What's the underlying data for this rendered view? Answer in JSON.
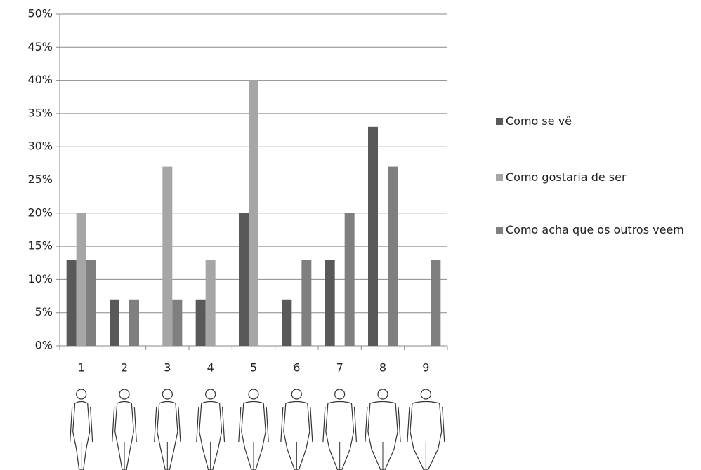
{
  "chart_data": {
    "type": "bar",
    "categories": [
      "1",
      "2",
      "3",
      "4",
      "5",
      "6",
      "7",
      "8",
      "9"
    ],
    "series": [
      {
        "name": "Como se vê",
        "color": "#595959",
        "values": [
          13,
          7,
          0,
          7,
          20,
          7,
          13,
          33,
          0
        ]
      },
      {
        "name": "Como gostaria de ser",
        "color": "#a6a6a6",
        "values": [
          20,
          0,
          27,
          13,
          40,
          0,
          0,
          0,
          0
        ]
      },
      {
        "name": "Como acha que os outros veem",
        "color": "#7f7f7f",
        "values": [
          13,
          7,
          7,
          0,
          0,
          13,
          20,
          27,
          13
        ]
      }
    ],
    "ylim": [
      0,
      50
    ],
    "yticks": [
      {
        "value": 0,
        "label": "0%"
      },
      {
        "value": 5,
        "label": "5%"
      },
      {
        "value": 10,
        "label": "10%"
      },
      {
        "value": 15,
        "label": "15%"
      },
      {
        "value": 20,
        "label": "20%"
      },
      {
        "value": 25,
        "label": "25%"
      },
      {
        "value": 30,
        "label": "30%"
      },
      {
        "value": 35,
        "label": "35%"
      },
      {
        "value": 40,
        "label": "40%"
      },
      {
        "value": 45,
        "label": "45%"
      },
      {
        "value": 50,
        "label": "50%"
      }
    ],
    "grid": true
  }
}
